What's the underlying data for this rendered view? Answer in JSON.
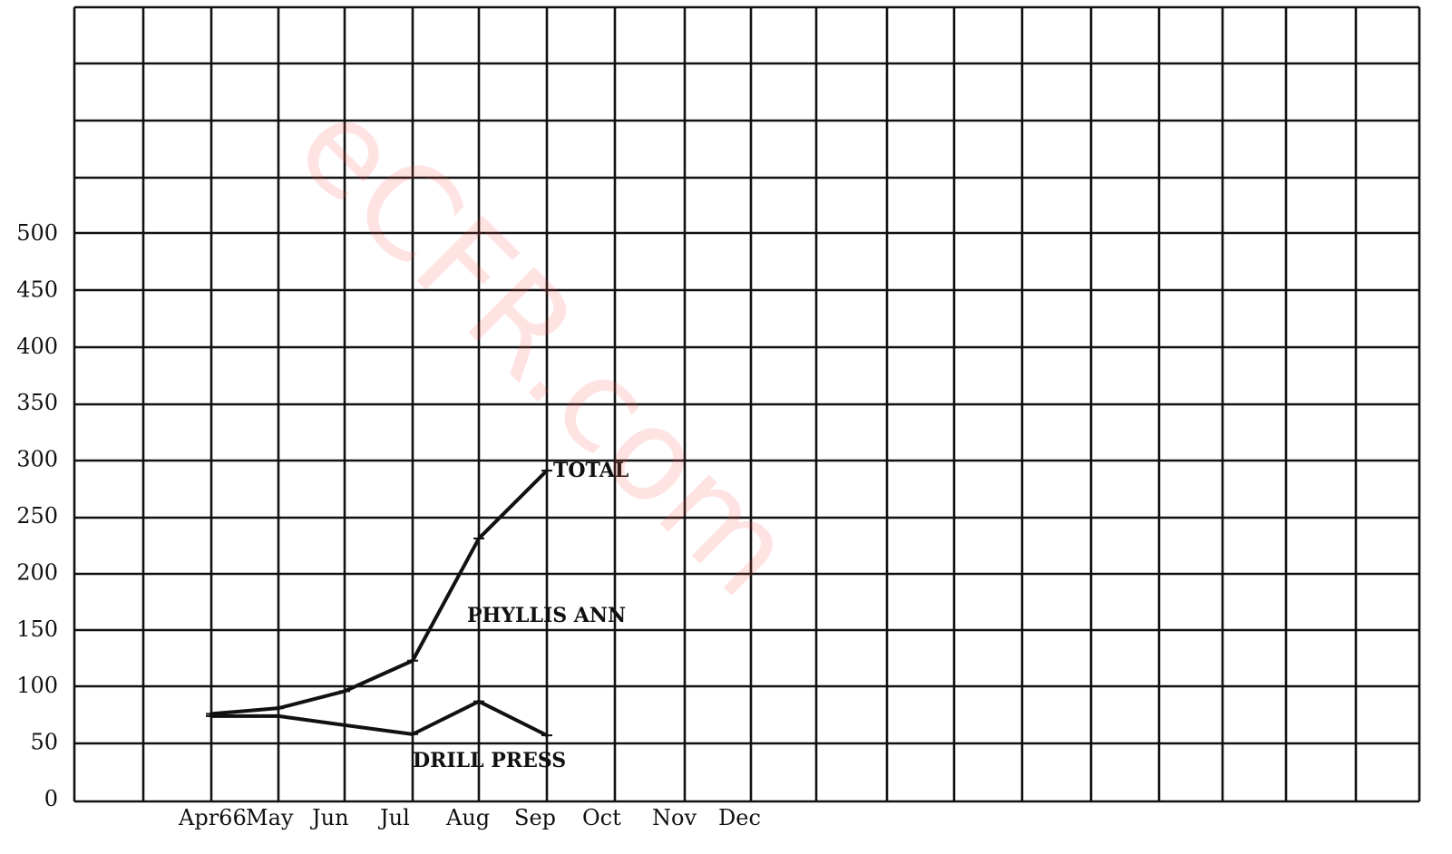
{
  "watermark": "eCFR.com",
  "chart_data": {
    "type": "line",
    "title": "",
    "xlabel": "",
    "ylabel": "",
    "categories": [
      "Apr66",
      "May",
      "Jun",
      "Jul",
      "Aug",
      "Sep",
      "Oct",
      "Nov",
      "Dec"
    ],
    "ylim": [
      0,
      500
    ],
    "yticks": [
      0,
      50,
      100,
      150,
      200,
      250,
      300,
      350,
      400,
      450,
      500
    ],
    "grid": true,
    "series": [
      {
        "name": "TOTAL",
        "values": [
          75,
          80,
          95,
          122,
          230,
          290,
          null,
          null,
          null
        ]
      },
      {
        "name": "DRILL PRESS",
        "values": [
          73,
          73,
          65,
          57,
          86,
          56,
          null,
          null,
          null
        ]
      }
    ],
    "annotations": [
      "PHYLLIS ANN"
    ],
    "colors": {
      "line": "#111111",
      "grid": "#111111",
      "watermark": "#ff5050"
    }
  }
}
